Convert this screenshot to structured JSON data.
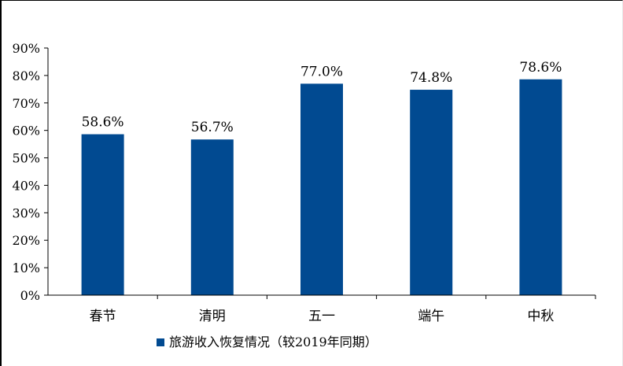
{
  "chart_data": {
    "type": "bar",
    "categories": [
      "春节",
      "清明",
      "五一",
      "端午",
      "中秋"
    ],
    "series": [
      {
        "name": "旅游收入恢复情况（较2019年同期）",
        "values": [
          58.6,
          56.7,
          77.0,
          74.8,
          78.6
        ],
        "labels": [
          "58.6%",
          "56.7%",
          "77.0%",
          "74.8%",
          "78.6%"
        ],
        "color": "#014a91"
      }
    ],
    "ylim": [
      0,
      90
    ],
    "yticks": [
      0,
      10,
      20,
      30,
      40,
      50,
      60,
      70,
      80,
      90
    ],
    "ytick_labels": [
      "0%",
      "10%",
      "20%",
      "30%",
      "40%",
      "50%",
      "60%",
      "70%",
      "80%",
      "90%"
    ],
    "title": "",
    "xlabel": "",
    "ylabel": "",
    "grid": false,
    "legend_position": "bottom"
  }
}
